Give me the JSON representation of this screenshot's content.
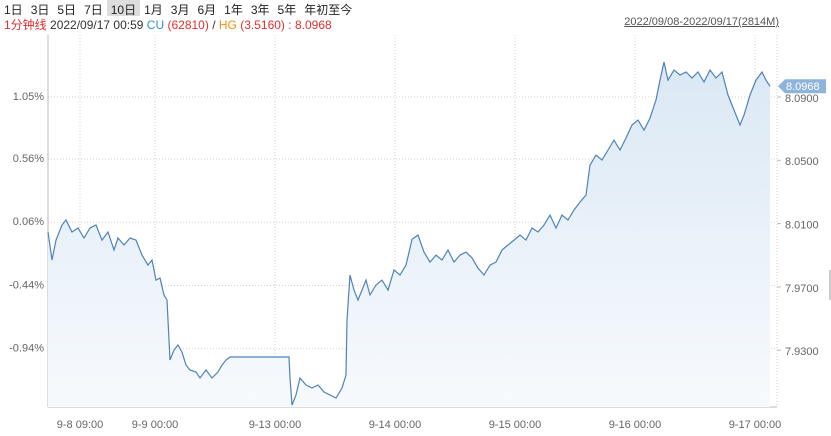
{
  "toolbar": {
    "buttons": [
      "1日",
      "3日",
      "5日",
      "7日",
      "10日",
      "1月",
      "3月",
      "6月",
      "1年",
      "3年",
      "5年",
      "年初至今"
    ],
    "active": 4
  },
  "header": {
    "interval": "1分钟线",
    "time": "2022/09/17 00:59",
    "cu_label": "CU",
    "cu_value": "(62810)",
    "sep": "/",
    "hg_label": "HG",
    "hg_value": "(3.5160)",
    "ratio_sep": ":",
    "ratio": "8.0968",
    "range": "2022/09/08-2022/09/17(2814M)"
  },
  "chart_data": {
    "type": "line",
    "grid": true,
    "x": [
      2.6,
      3.4,
      4.2,
      5.4,
      6.2,
      7.4,
      8.6,
      9.8,
      11,
      12.2,
      13.4,
      14.6,
      15.8,
      16.6,
      17.8,
      19,
      20.2,
      21.4,
      22.6,
      23.4,
      24.2,
      25,
      25.8,
      26.4,
      27,
      27.8,
      28.6,
      29.4,
      30.2,
      31,
      32.2,
      33,
      34.2,
      35.4,
      36.6,
      37.4,
      38.2,
      39,
      50.8,
      51,
      51.4,
      52.2,
      53,
      54.2,
      55.4,
      56.6,
      57.8,
      59,
      60.2,
      61.4,
      62.2,
      62.4,
      63,
      63.8,
      64.6,
      65.4,
      66.2,
      67,
      68.2,
      69.4,
      70.6,
      71.8,
      73,
      74.2,
      75.4,
      76.6,
      77.8,
      79,
      80.2,
      81.4,
      82.6,
      83.8,
      85,
      86.2,
      87.4,
      88.6,
      89.8,
      91,
      92.2,
      93.4,
      94.6,
      95.8,
      97,
      98.2,
      99.4,
      100.6,
      101.8,
      103,
      104.2,
      105.4,
      106.6,
      107.8,
      109,
      110.2,
      111,
      112.2,
      113.4,
      114.6,
      115.8,
      117,
      118.2,
      119.4,
      120.6,
      121.8,
      123,
      124.2,
      125,
      125.8,
      126.6,
      127.8,
      129,
      130.2,
      131.4,
      132.6,
      133.8,
      135,
      136.2,
      137.4,
      138.6,
      139.8,
      141,
      141.8,
      143,
      144.2,
      145.4,
      146.2,
      147
    ],
    "series": [
      {
        "axis": "y2",
        "color": "#4f82b8",
        "values": [
          8.0047,
          7.987,
          7.9996,
          8.0091,
          8.0123,
          8.0047,
          8.0072,
          8.0009,
          8.0072,
          8.0091,
          7.9996,
          8.0047,
          7.9933,
          8.0009,
          7.9965,
          8.0009,
          7.9996,
          7.9901,
          7.9838,
          7.987,
          7.9743,
          7.9756,
          7.9649,
          7.9617,
          7.9238,
          7.9301,
          7.9333,
          7.9288,
          7.9206,
          7.9175,
          7.9162,
          7.9124,
          7.9175,
          7.9124,
          7.9162,
          7.9206,
          7.9238,
          7.9257,
          7.9257,
          7.9124,
          7.8953,
          7.9017,
          7.9124,
          7.908,
          7.9061,
          7.908,
          7.9036,
          7.9017,
          7.8998,
          7.9061,
          7.9143,
          7.9491,
          7.9775,
          7.968,
          7.9617,
          7.968,
          7.9743,
          7.9649,
          7.9712,
          7.9743,
          7.968,
          7.9807,
          7.9775,
          7.9838,
          8.0,
          8.0028,
          7.992,
          7.9857,
          7.9901,
          7.987,
          7.9933,
          7.9857,
          7.9901,
          7.992,
          7.9883,
          7.9819,
          7.9775,
          7.9838,
          7.9857,
          7.9933,
          7.9965,
          7.9996,
          8.0028,
          7.9996,
          8.0072,
          8.0047,
          8.0091,
          8.0154,
          8.0072,
          8.0154,
          8.0123,
          8.0186,
          8.0236,
          8.0281,
          8.047,
          8.0533,
          8.0502,
          8.0565,
          8.0628,
          8.0565,
          8.0641,
          8.0723,
          8.0755,
          8.0691,
          8.0767,
          8.0881,
          8.1007,
          8.1121,
          8.1007,
          8.1071,
          8.1039,
          8.1058,
          8.102,
          8.1058,
          8.0995,
          8.1071,
          8.102,
          8.1058,
          8.0913,
          8.0818,
          8.0723,
          8.0786,
          8.0913,
          8.1007,
          8.1058,
          8.1007,
          8.0968
        ]
      }
    ],
    "xlim": [
      2.6,
      147
    ],
    "xticks": [
      {
        "value": 9,
        "label": "9-8 09:00"
      },
      {
        "value": 24,
        "label": "9-9 00:00"
      },
      {
        "value": 48,
        "label": "9-13 00:00"
      },
      {
        "value": 72,
        "label": "9-14 00:00"
      },
      {
        "value": 96,
        "label": "9-15 00:00"
      },
      {
        "value": 120,
        "label": "9-16 00:00"
      },
      {
        "value": 144,
        "label": "9-17 00:00"
      }
    ],
    "ylim": [
      -1.4,
      1.54
    ],
    "yticks": [
      {
        "value": 1.05,
        "label": "1.05%"
      },
      {
        "value": 0.56,
        "label": "0.56%"
      },
      {
        "value": 0.06,
        "label": "0.06%"
      },
      {
        "value": -0.44,
        "label": "-0.44%"
      },
      {
        "value": -0.94,
        "label": "-0.94%"
      }
    ],
    "y2lim": [
      7.8941,
      8.1292
    ],
    "y2ticks": [
      {
        "value": 8.09,
        "label": "8.0900"
      },
      {
        "value": 8.05,
        "label": "8.0500"
      },
      {
        "value": 8.01,
        "label": "8.0100"
      },
      {
        "value": 7.97,
        "label": "7.9700"
      },
      {
        "value": 7.93,
        "label": "7.9300"
      }
    ]
  }
}
